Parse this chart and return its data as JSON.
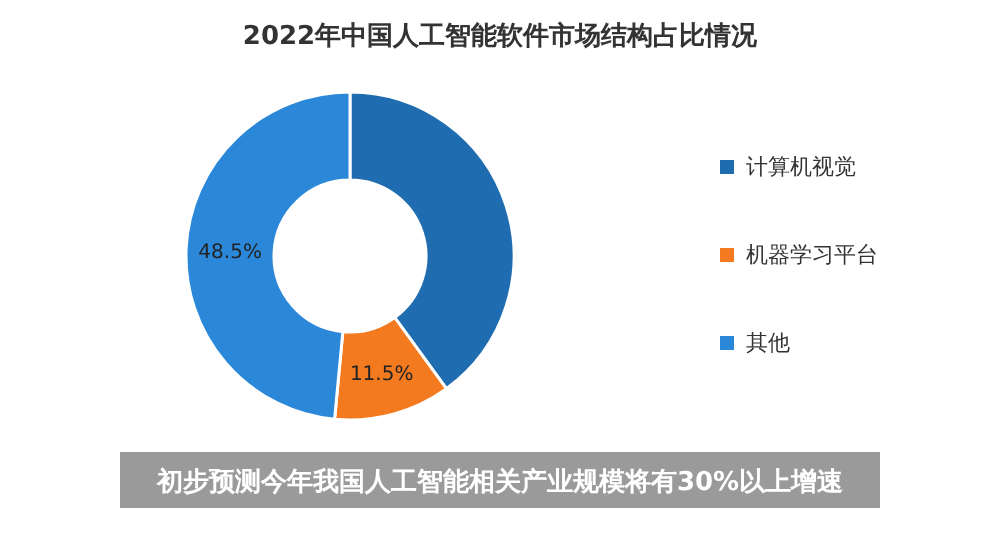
{
  "chart_data": {
    "type": "donut",
    "title": "2022年中国人工智能软件市场结构占比情况",
    "categories": [
      "计算机视觉",
      "机器学习平台",
      "其他"
    ],
    "values": [
      40,
      11.5,
      48.5
    ],
    "colors": [
      "#1f6cb0",
      "#f47a20",
      "#2b88d8"
    ],
    "value_labels": [
      null,
      "11.5%",
      "48.5%"
    ],
    "legend": "right",
    "annotations": [
      "初步预测今年我国人工智能相关产业规模将有30%以上增速"
    ]
  }
}
